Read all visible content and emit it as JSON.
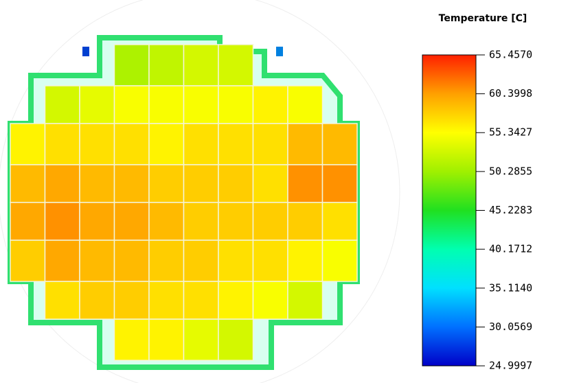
{
  "chart_data": {
    "type": "heatmap",
    "title": "Temperature [C]",
    "z": [
      [
        null,
        null,
        null,
        51,
        52,
        53,
        53,
        null,
        null,
        null
      ],
      [
        null,
        53,
        54,
        55,
        55,
        55,
        55,
        56,
        55,
        null
      ],
      [
        56,
        57,
        57,
        57,
        56,
        57,
        57,
        57,
        59,
        59
      ],
      [
        59,
        60,
        59,
        59,
        58,
        58,
        58,
        57,
        61,
        61
      ],
      [
        60,
        61,
        60,
        60,
        59,
        58,
        58,
        58,
        58,
        57
      ],
      [
        58,
        60,
        59,
        59,
        58,
        58,
        57,
        57,
        56,
        55
      ],
      [
        null,
        57,
        58,
        58,
        57,
        57,
        56,
        55,
        53,
        null
      ],
      [
        null,
        null,
        null,
        56,
        56,
        54,
        53,
        null,
        null,
        null
      ]
    ],
    "zlim": [
      24.9997,
      65.457
    ],
    "zticks": [
      {
        "value": 24.9997,
        "label": "24.9997"
      },
      {
        "value": 30.0569,
        "label": "30.0569"
      },
      {
        "value": 35.114,
        "label": "35.1140"
      },
      {
        "value": 40.1712,
        "label": "40.1712"
      },
      {
        "value": 45.2283,
        "label": "45.2283"
      },
      {
        "value": 50.2855,
        "label": "50.2855"
      },
      {
        "value": 55.3427,
        "label": "55.3427"
      },
      {
        "value": 60.3998,
        "label": "60.3998"
      },
      {
        "value": 65.457,
        "label": "65.4570"
      }
    ],
    "colorscale": [
      "#0000c8",
      "#0070ff",
      "#00e0ff",
      "#00ffb0",
      "#20e020",
      "#a0f000",
      "#ffff00",
      "#ffa000",
      "#ff2000"
    ]
  }
}
